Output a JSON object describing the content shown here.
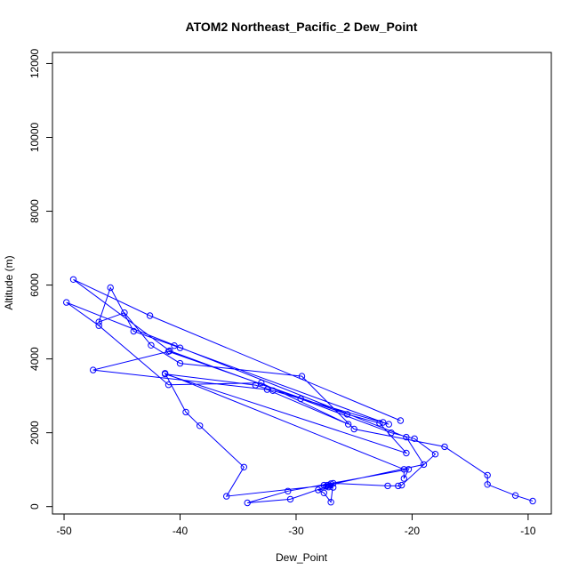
{
  "chart_data": {
    "type": "line",
    "title": "ATOM2 Northeast_Pacific_2 Dew_Point",
    "xlabel": "Dew_Point",
    "ylabel": "Altitude (m)",
    "xlim": [
      -51,
      -8
    ],
    "ylim": [
      -200,
      12300
    ],
    "xticks": [
      -50,
      -40,
      -30,
      -20,
      -10
    ],
    "yticks": [
      0,
      2000,
      4000,
      6000,
      8000,
      10000,
      12000
    ],
    "grid": false,
    "markers": "open-circle",
    "color": "#0000ff",
    "series": [
      {
        "x": [
          -9.6,
          -11.1,
          -13.5,
          -13.5,
          -17.2,
          -25.0,
          -29.5,
          -40.0,
          -42.5,
          -44.8,
          -47.0,
          -46.0,
          -44.0,
          -40.0,
          -40.5,
          -22.5,
          -22.0,
          -32.0,
          -33.5,
          -41.3,
          -20.5,
          -22.8,
          -25.6,
          -41.0,
          -47.5,
          -32.5,
          -25.5,
          -33.0,
          -41.0,
          -47.0,
          -49.8,
          -20.5,
          -19.0,
          -27.3,
          -36.0,
          -34.5,
          -38.3,
          -39.5,
          -41.3,
          -20.7,
          -20.7,
          -20.3,
          -30.7,
          -34.2,
          -30.5,
          -27.1,
          -27.0,
          -27.6,
          -27.2,
          -27.4,
          -26.8,
          -28.1,
          -27.6,
          -27.0,
          -26.8,
          -22.1,
          -21.2,
          -20.9,
          -18.0,
          -19.8,
          -21.8,
          -29.6,
          -40.9,
          -49.2,
          -42.6,
          -21.0
        ],
        "y": [
          150,
          300,
          600,
          850,
          1620,
          2100,
          3530,
          3880,
          4370,
          5250,
          5000,
          5930,
          4750,
          4300,
          4360,
          2280,
          2230,
          3140,
          3290,
          3590,
          1450,
          2260,
          2500,
          4200,
          3700,
          3170,
          2230,
          3350,
          3300,
          4900,
          5530,
          1880,
          1140,
          580,
          280,
          1070,
          2190,
          2560,
          3610,
          1010,
          760,
          1010,
          420,
          100,
          200,
          570,
          620,
          580,
          530,
          550,
          520,
          450,
          370,
          120,
          630,
          560,
          560,
          580,
          1420,
          1840,
          2000,
          2920,
          4220,
          6150,
          5170,
          2330
        ]
      }
    ]
  }
}
